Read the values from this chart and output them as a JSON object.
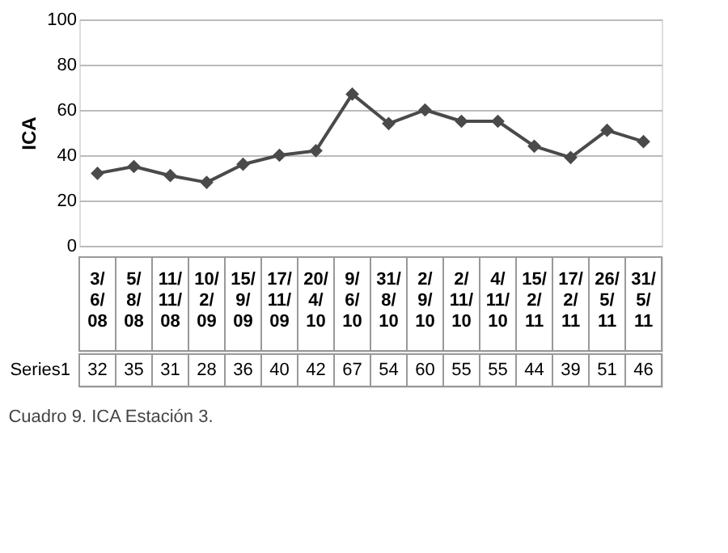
{
  "chart_data": {
    "type": "line",
    "ylabel": "ICA",
    "categories": [
      "3/6/08",
      "5/8/08",
      "11/11/08",
      "10/2/09",
      "15/9/09",
      "17/11/09",
      "20/4/10",
      "9/6/10",
      "31/8/10",
      "2/9/10",
      "2/11/10",
      "4/11/10",
      "15/2/11",
      "17/2/11",
      "26/5/11",
      "31/5/11"
    ],
    "series": [
      {
        "name": "Series1",
        "color": "#4a4a4a",
        "values": [
          32,
          35,
          31,
          28,
          36,
          40,
          42,
          67,
          54,
          60,
          55,
          55,
          44,
          39,
          51,
          46
        ]
      }
    ],
    "ylim": [
      0,
      100
    ],
    "yticks": [
      0,
      20,
      40,
      60,
      80,
      100
    ],
    "grid": "y",
    "marker": "diamond",
    "line_style": "solid",
    "legend": false,
    "data_labels": true,
    "annotations": [
      "Cuadro 9. ICA Estación 3."
    ]
  }
}
